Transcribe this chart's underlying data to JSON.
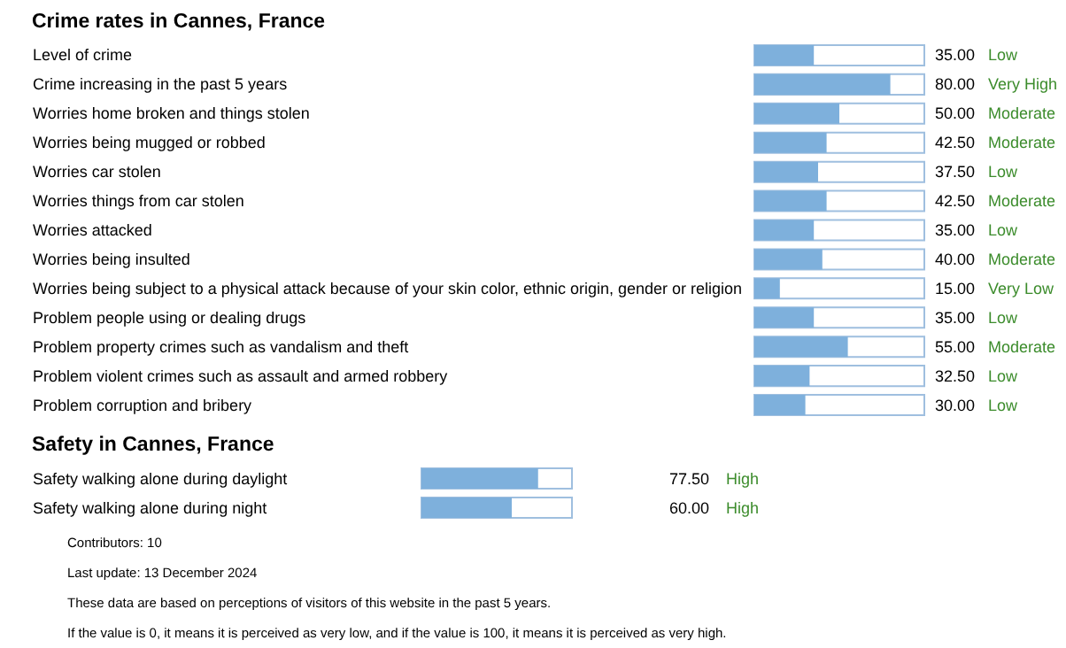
{
  "chart_data": [
    {
      "type": "bar",
      "orientation": "horizontal",
      "title": "Crime rates in Cannes, France",
      "tick_labels": "y",
      "xlim": [
        0,
        100
      ],
      "color": "#7eb0dc",
      "categories": [
        "Level of crime",
        "Crime increasing in the past 5 years",
        "Worries home broken and things stolen",
        "Worries being mugged or robbed",
        "Worries car stolen",
        "Worries things from car stolen",
        "Worries attacked",
        "Worries being insulted",
        "Worries being subject to a physical attack because of your skin color, ethnic origin, gender or religion",
        "Problem people using or dealing drugs",
        "Problem property crimes such as vandalism and theft",
        "Problem violent crimes such as assault and armed robbery",
        "Problem corruption and bribery"
      ],
      "values": [
        35.0,
        80.0,
        50.0,
        42.5,
        37.5,
        42.5,
        35.0,
        40.0,
        15.0,
        35.0,
        55.0,
        32.5,
        30.0
      ],
      "value_labels": [
        "35.00",
        "80.00",
        "50.00",
        "42.50",
        "37.50",
        "42.50",
        "35.00",
        "40.00",
        "15.00",
        "35.00",
        "55.00",
        "32.50",
        "30.00"
      ],
      "annotations": [
        "Low",
        "Very High",
        "Moderate",
        "Moderate",
        "Low",
        "Moderate",
        "Low",
        "Moderate",
        "Very Low",
        "Low",
        "Moderate",
        "Low",
        "Low"
      ]
    },
    {
      "type": "bar",
      "orientation": "horizontal",
      "title": "Safety in Cannes, France",
      "tick_labels": "y",
      "xlim": [
        0,
        100
      ],
      "color": "#7eb0dc",
      "categories": [
        "Safety walking alone during daylight",
        "Safety walking alone during night"
      ],
      "values": [
        77.5,
        60.0
      ],
      "value_labels": [
        "77.50",
        "60.00"
      ],
      "annotations": [
        "High",
        "High",
        "Contributors: 10",
        "Last update: 13 December 2024",
        "These data are based on perceptions of visitors of this website in the past 5 years.",
        "If the value is 0, it means it is perceived as very low, and if the value is 100, it means it is perceived as very high."
      ]
    }
  ]
}
